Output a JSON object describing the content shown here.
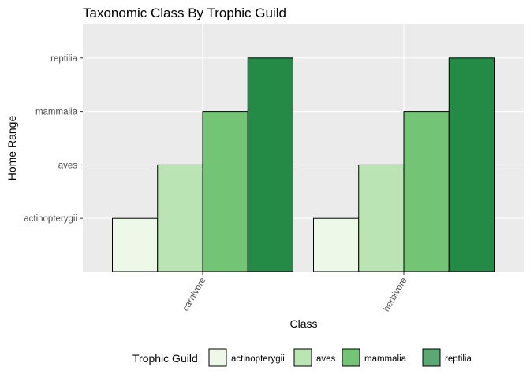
{
  "chart_data": {
    "type": "bar",
    "title": "Taxonomic Class By Trophic Guild",
    "xlabel": "Class",
    "ylabel": "Home Range",
    "categories": [
      "carnivore",
      "herbivore"
    ],
    "y_levels": [
      "actinopterygii",
      "aves",
      "mammalia",
      "reptilia"
    ],
    "series": [
      {
        "name": "actinopterygii",
        "color": "#edf8e9",
        "values": [
          "actinopterygii",
          "actinopterygii"
        ]
      },
      {
        "name": "aves",
        "color": "#bae4b3",
        "values": [
          "aves",
          "aves"
        ]
      },
      {
        "name": "mammalia",
        "color": "#74c476",
        "values": [
          "mammalia",
          "mammalia"
        ]
      },
      {
        "name": "reptilia",
        "color": "#238b45",
        "values": [
          "reptilia",
          "reptilia"
        ]
      }
    ],
    "grid": true,
    "legend": {
      "title": "Trophic Guild",
      "placement": "bottom"
    },
    "colors": {
      "panel": "#ebebeb",
      "grid": "#ffffff",
      "text": "#4d4d4d"
    }
  }
}
